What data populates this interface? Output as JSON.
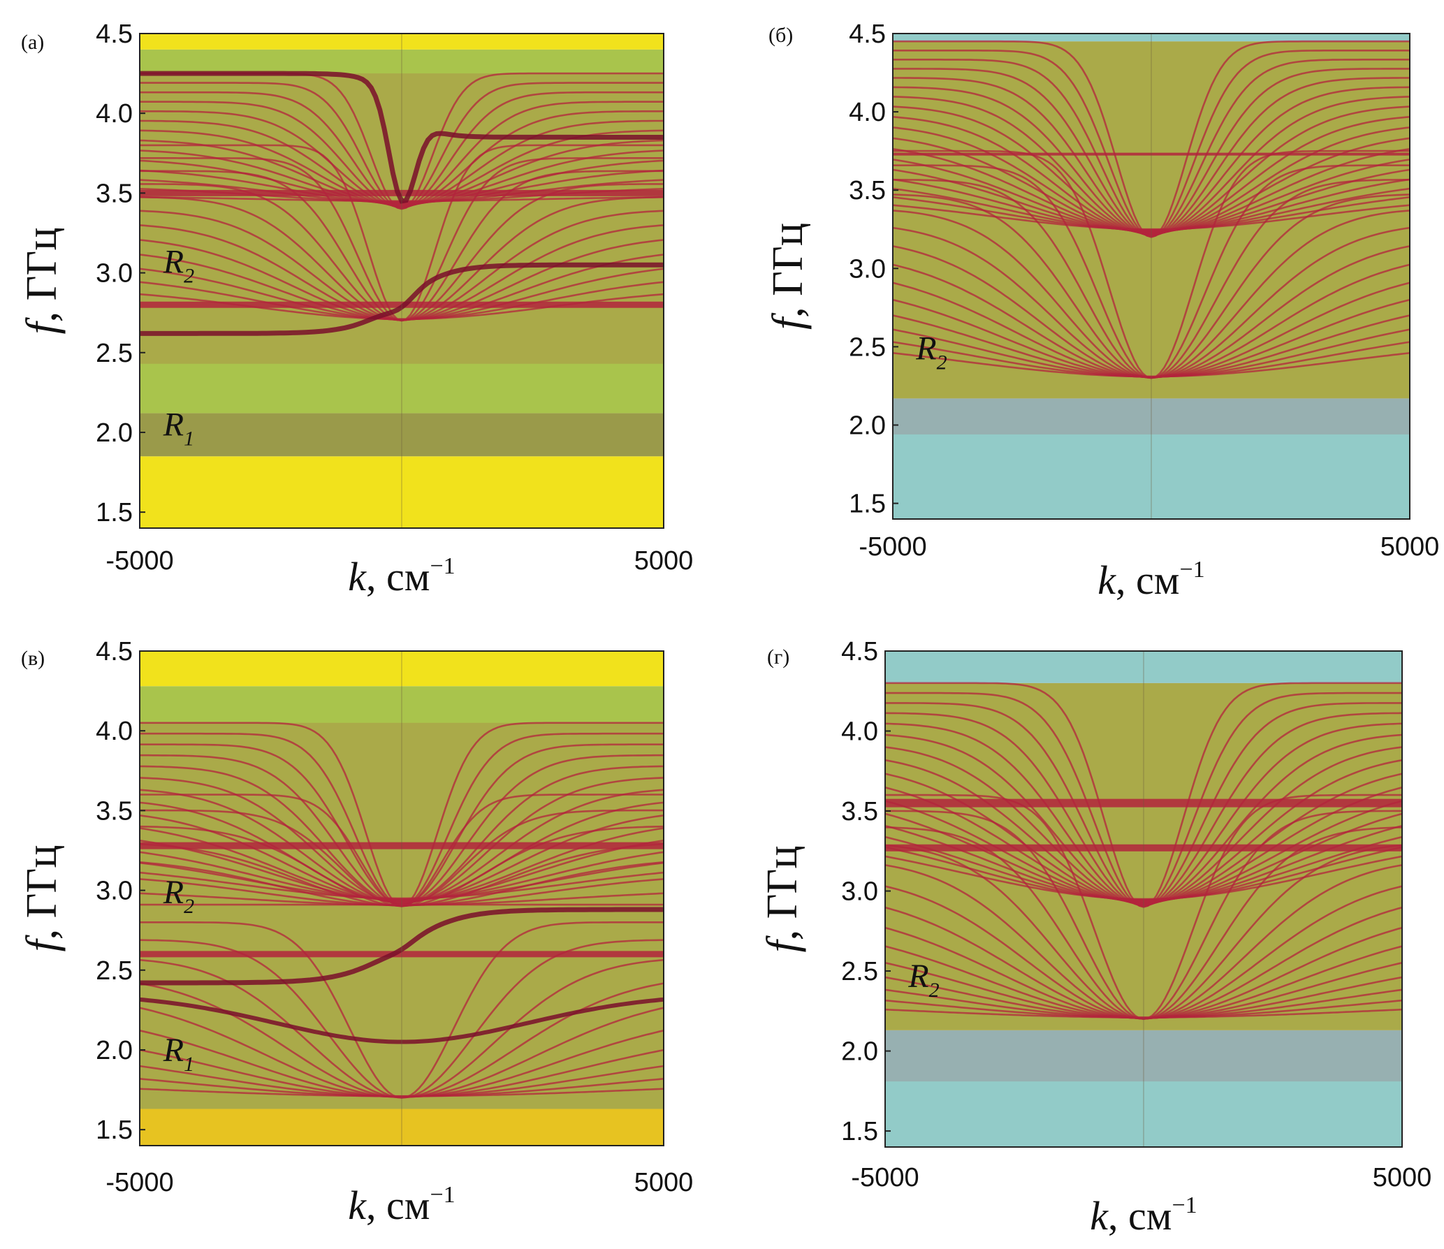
{
  "colors": {
    "green": "#a9c44c",
    "yellow": "#f1e21c",
    "cyan": "#92cbc8",
    "teal": "#68b09a",
    "olive": "#9a9a4a",
    "red": "#b3243c",
    "darkred": "#7a0f2a",
    "frame": "#222222"
  },
  "chart_data": [
    {
      "panel_label": "(а)",
      "type": "heatmap",
      "title": "",
      "xlabel": "k, см",
      "xlabel_var": "k",
      "xlabel_unit": ", см",
      "xlabel_sup": "−1",
      "ylabel": "f, ГГц",
      "ylabel_var": "f",
      "ylabel_unit": ", ГГц",
      "xlim": [
        -5000,
        5000
      ],
      "ylim": [
        1.4,
        4.5
      ],
      "x_ticks": [
        -5000,
        5000
      ],
      "x_tick_labels": [
        "-5000",
        "5000"
      ],
      "y_ticks": [
        1.5,
        2.0,
        2.5,
        3.0,
        3.5,
        4.0,
        4.5
      ],
      "y_tick_labels": [
        "1.5",
        "2.0",
        "2.5",
        "3.0",
        "3.5",
        "4.0",
        "4.5"
      ],
      "background_bands": [
        {
          "f_low": 1.4,
          "f_high": 1.85,
          "color": "yellow"
        },
        {
          "f_low": 1.85,
          "f_high": 2.12,
          "color": "olive"
        },
        {
          "f_low": 2.12,
          "f_high": 4.4,
          "color": "green"
        },
        {
          "f_low": 4.4,
          "f_high": 4.5,
          "color": "yellow"
        }
      ],
      "mode_families": [
        {
          "type": "descending",
          "count": 14,
          "f_top": 4.25,
          "f_min": 3.4,
          "k_width": 1300,
          "f_spread": 1.4,
          "color": "red"
        },
        {
          "type": "ascending",
          "count": 12,
          "f_top": 3.8,
          "f_min": 2.7,
          "k_width": 1400,
          "f_spread": 0.9,
          "color": "red"
        }
      ],
      "series": [
        {
          "name": "flat-3.5",
          "type": "flat",
          "f": 3.5,
          "width": 9,
          "color": "red"
        },
        {
          "name": "flat-2.8",
          "type": "flat",
          "f": 2.8,
          "width": 9,
          "color": "red"
        },
        {
          "name": "upper-step",
          "type": "step",
          "f_left": 4.25,
          "f_right": 3.85,
          "k_width": 600,
          "dip": 0.6,
          "width": 7,
          "color": "darkred"
        },
        {
          "name": "lower-step",
          "type": "step",
          "f_left": 2.62,
          "f_right": 3.05,
          "k_width": 900,
          "dip": 0.05,
          "width": 7,
          "color": "darkred"
        }
      ],
      "region_labels": [
        {
          "base": "R",
          "sub": "2",
          "f": 3.0,
          "k": -4550
        },
        {
          "base": "R",
          "sub": "1",
          "f": 1.98,
          "k": -4550
        }
      ]
    },
    {
      "panel_label": "(б)",
      "type": "heatmap",
      "title": "",
      "xlabel": "k, см",
      "xlabel_var": "k",
      "xlabel_unit": ", см",
      "xlabel_sup": "−1",
      "ylabel": "f, ГГц",
      "ylabel_var": "f",
      "ylabel_unit": ", ГГц",
      "xlim": [
        -5000,
        5000
      ],
      "ylim": [
        1.4,
        4.5
      ],
      "x_ticks": [
        -5000,
        5000
      ],
      "x_tick_labels": [
        "-5000",
        "5000"
      ],
      "y_ticks": [
        1.5,
        2.0,
        2.5,
        3.0,
        3.5,
        4.0,
        4.5
      ],
      "y_tick_labels": [
        "1.5",
        "2.0",
        "2.5",
        "3.0",
        "3.5",
        "4.0",
        "4.5"
      ],
      "background_bands": [
        {
          "f_low": 1.4,
          "f_high": 2.17,
          "color": "cyan"
        },
        {
          "f_low": 2.17,
          "f_high": 4.45,
          "color": "green"
        },
        {
          "f_low": 4.45,
          "f_high": 4.5,
          "color": "cyan"
        }
      ],
      "mode_families": [
        {
          "type": "descending",
          "count": 18,
          "f_top": 4.45,
          "f_min": 3.2,
          "k_width": 1500,
          "f_spread": 1.8,
          "color": "red"
        },
        {
          "type": "ascending",
          "count": 14,
          "f_top": 3.75,
          "f_min": 2.3,
          "k_width": 1800,
          "f_spread": 1.2,
          "color": "red"
        }
      ],
      "series": [
        {
          "name": "flat-3.73",
          "type": "flat",
          "f": 3.73,
          "width": 4,
          "color": "red"
        }
      ],
      "region_labels": [
        {
          "base": "R",
          "sub": "2",
          "f": 2.42,
          "k": -4550
        }
      ]
    },
    {
      "panel_label": "(в)",
      "type": "heatmap",
      "title": "",
      "xlabel": "k, см",
      "xlabel_var": "k",
      "xlabel_unit": ", см",
      "xlabel_sup": "−1",
      "ylabel": "f, ГГц",
      "ylabel_var": "f",
      "ylabel_unit": ", ГГц",
      "xlim": [
        -5000,
        5000
      ],
      "ylim": [
        1.4,
        4.5
      ],
      "x_ticks": [
        -5000,
        5000
      ],
      "x_tick_labels": [
        "-5000",
        "5000"
      ],
      "y_ticks": [
        1.5,
        2.0,
        2.5,
        3.0,
        3.5,
        4.0,
        4.5
      ],
      "y_tick_labels": [
        "1.5",
        "2.0",
        "2.5",
        "3.0",
        "3.5",
        "4.0",
        "4.5"
      ],
      "background_bands": [
        {
          "f_low": 1.4,
          "f_high": 1.63,
          "color": "yellow"
        },
        {
          "f_low": 1.63,
          "f_high": 4.28,
          "color": "green"
        },
        {
          "f_low": 4.28,
          "f_high": 4.5,
          "color": "yellow"
        }
      ],
      "mode_families": [
        {
          "type": "descending",
          "count": 14,
          "f_top": 4.05,
          "f_min": 2.9,
          "k_width": 1500,
          "f_spread": 1.6,
          "color": "red"
        },
        {
          "type": "ascending",
          "count": 8,
          "f_top": 3.6,
          "f_min": 2.9,
          "k_width": 1700,
          "f_spread": 0.7,
          "color": "red"
        },
        {
          "type": "ascending",
          "count": 10,
          "f_top": 2.8,
          "f_min": 1.7,
          "k_width": 2200,
          "f_spread": 1.0,
          "color": "red"
        }
      ],
      "series": [
        {
          "name": "flat-3.28",
          "type": "flat",
          "f": 3.28,
          "width": 10,
          "color": "red"
        },
        {
          "name": "flat-2.6",
          "type": "flat",
          "f": 2.6,
          "width": 9,
          "color": "red"
        },
        {
          "name": "step-2.42",
          "type": "step",
          "f_left": 2.42,
          "f_right": 2.88,
          "k_width": 1100,
          "dip": 0.02,
          "width": 7,
          "color": "darkred"
        },
        {
          "name": "v-2.05",
          "type": "v",
          "f_edge": 2.35,
          "f_min": 2.05,
          "k_width": 2400,
          "width": 6,
          "color": "darkred"
        }
      ],
      "region_labels": [
        {
          "base": "R",
          "sub": "2",
          "f": 2.92,
          "k": -4550
        },
        {
          "base": "R",
          "sub": "1",
          "f": 1.93,
          "k": -4550
        }
      ]
    },
    {
      "panel_label": "(г)",
      "type": "heatmap",
      "title": "",
      "xlabel": "k, см",
      "xlabel_var": "k",
      "xlabel_unit": ", см",
      "xlabel_sup": "−1",
      "ylabel": "f, ГГц",
      "ylabel_var": "f",
      "ylabel_unit": ", ГГц",
      "xlim": [
        -5000,
        5000
      ],
      "ylim": [
        1.4,
        4.5
      ],
      "x_ticks": [
        -5000,
        5000
      ],
      "x_tick_labels": [
        "-5000",
        "5000"
      ],
      "y_ticks": [
        1.5,
        2.0,
        2.5,
        3.0,
        3.5,
        4.0,
        4.5
      ],
      "y_tick_labels": [
        "1.5",
        "2.0",
        "2.5",
        "3.0",
        "3.5",
        "4.0",
        "4.5"
      ],
      "background_bands": [
        {
          "f_low": 1.4,
          "f_high": 2.13,
          "color": "cyan"
        },
        {
          "f_low": 2.13,
          "f_high": 4.3,
          "color": "green"
        },
        {
          "f_low": 4.3,
          "f_high": 4.5,
          "color": "cyan"
        }
      ],
      "mode_families": [
        {
          "type": "descending",
          "count": 16,
          "f_top": 4.3,
          "f_min": 2.9,
          "k_width": 1700,
          "f_spread": 1.7,
          "color": "red"
        },
        {
          "type": "ascending",
          "count": 14,
          "f_top": 3.6,
          "f_min": 2.2,
          "k_width": 2100,
          "f_spread": 1.3,
          "color": "red"
        }
      ],
      "series": [
        {
          "name": "flat-3.55",
          "type": "flat",
          "f": 3.55,
          "width": 12,
          "color": "red"
        },
        {
          "name": "flat-3.27",
          "type": "flat",
          "f": 3.27,
          "width": 10,
          "color": "red"
        }
      ],
      "region_labels": [
        {
          "base": "R",
          "sub": "2",
          "f": 2.4,
          "k": -4550
        }
      ]
    }
  ]
}
